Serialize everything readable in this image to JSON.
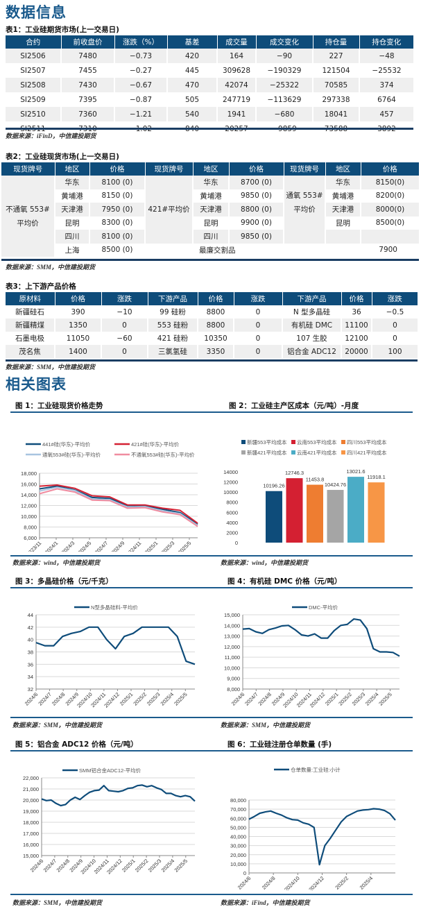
{
  "sections": {
    "data_info_title": "数据信息",
    "charts_title": "相关图表"
  },
  "table1": {
    "caption": "表1：工业硅期货市场(上一交易日)",
    "headers": [
      "合约",
      "前收盘价",
      "涨跌（%）",
      "基差",
      "成交量",
      "成交变化",
      "持仓量",
      "持仓变化"
    ],
    "rows": [
      [
        "SI2506",
        "7480",
        "−0.73",
        "420",
        "164",
        "−90",
        "227",
        "−48"
      ],
      [
        "SI2507",
        "7455",
        "−0.27",
        "445",
        "309628",
        "−190329",
        "121504",
        "−25532"
      ],
      [
        "SI2508",
        "7430",
        "−0.67",
        "470",
        "42074",
        "−25322",
        "70585",
        "374"
      ],
      [
        "SI2509",
        "7395",
        "−0.87",
        "505",
        "247719",
        "−113629",
        "297338",
        "6764"
      ],
      [
        "SI2510",
        "7360",
        "−1.21",
        "540",
        "1941",
        "−680",
        "18041",
        "457"
      ],
      [
        "SI2511",
        "7310",
        "−1.02",
        "840",
        "20257",
        "−9859",
        "73588",
        "3892"
      ]
    ],
    "source": "数据来源：iFinD，中信建投期货"
  },
  "table2": {
    "caption": "表2：工业硅现货市场(上一交易日)",
    "headers": [
      "现货牌号",
      "地区",
      "价格",
      "现货牌号",
      "地区",
      "价格",
      "现货牌号",
      "地区",
      "价格"
    ],
    "group1": {
      "label_line1": "不通氧 553#",
      "label_line2": "平均价",
      "rows": [
        [
          "华东",
          "8100 (0)"
        ],
        [
          "黄埔港",
          "8150 (0)"
        ],
        [
          "天津港",
          "7950 (0)"
        ],
        [
          "昆明",
          "8300 (0)"
        ],
        [
          "四川",
          "8100 (0)"
        ],
        [
          "上海",
          "8500 (0)"
        ]
      ]
    },
    "group2": {
      "label": "421#平均价",
      "rows": [
        [
          "华东",
          "8700 (0)"
        ],
        [
          "黄埔港",
          "9850 (0)"
        ],
        [
          "天津港",
          "8800 (0)"
        ],
        [
          "昆明",
          "9900 (0)"
        ],
        [
          "四川",
          "9850 (0)"
        ]
      ]
    },
    "group3": {
      "label_line1": "通氧 553#",
      "label_line2": "平均价",
      "rows": [
        [
          "华东",
          "8150(0)"
        ],
        [
          "黄埔港",
          "8200(0)"
        ],
        [
          "天津港",
          "8000(0)"
        ],
        [
          "昆明",
          "8500(0)"
        ]
      ]
    },
    "last_row": {
      "label": "最廉交割品",
      "value": "7900"
    },
    "source": "数据来源：SMM，中信建投期货"
  },
  "table3": {
    "caption": "表3：上下游产品价格",
    "headers": [
      "原材料",
      "价格",
      "涨跌",
      "下游产品",
      "价格",
      "涨跌",
      "下游产品",
      "价格",
      "涨跌"
    ],
    "rows": [
      [
        "新疆硅石",
        "390",
        "−10",
        "99 硅粉",
        "8800",
        "0",
        "N 型多晶硅",
        "36",
        "−0.5"
      ],
      [
        "新疆精煤",
        "1350",
        "0",
        "553 硅粉",
        "8800",
        "0",
        "有机硅 DMC",
        "11100",
        "0"
      ],
      [
        "石墨电极",
        "11050",
        "−60",
        "421 硅粉",
        "10350",
        "0",
        "107 生胶",
        "12100",
        "0"
      ],
      [
        "茂名焦",
        "1400",
        "0",
        "三氯氢硅",
        "3350",
        "0",
        "铝合金 ADC12",
        "20000",
        "100"
      ]
    ],
    "source": "数据来源：SMM，中信建投期货"
  },
  "chart_captions": {
    "c1": "图 1：工业硅现货价格走势",
    "c2": "图 2：工业硅主产区成本（元/吨）-月度",
    "c3": "图 3：多晶硅价格（元/千克）",
    "c4": "图 4：有机硅 DMC 价格（元/吨）",
    "c5": "图 5：铝合金 ADC12 价格（元/吨）",
    "c6": "图 6：工业硅注册仓单数量 (手)"
  },
  "chart_sources": {
    "c1": "数据来源：wind，中信建投期货",
    "c2": "数据来源：wind，中信建投期货",
    "c3": "数据来源：SMM，中信建投期货",
    "c4": "数据来源：SMM，中信建投期货",
    "c5": "数据来源：SMM，中信建投期货",
    "c6": "数据来源：iFind，中信建投期货"
  },
  "chart_data": [
    {
      "type": "line",
      "title": "工业硅现货价格走势",
      "x": [
        "2023/11",
        "2024/1",
        "2024/3",
        "2024/5",
        "2024/7",
        "2024/9",
        "2024/11",
        "2025/1",
        "2025/3",
        "2025/5"
      ],
      "ylim": [
        6000,
        18000
      ],
      "yticks": [
        "6,000",
        "8,000",
        "10,000",
        "12,000",
        "14,000",
        "16,000",
        "18,000"
      ],
      "series": [
        {
          "name": "441#硅(华东)-平均价",
          "color": "#0e4c7a",
          "values": [
            15100,
            15600,
            14900,
            13500,
            13300,
            12000,
            12000,
            11300,
            10700,
            8500
          ]
        },
        {
          "name": "421#硅(华东)-平均价",
          "color": "#d42032",
          "values": [
            15600,
            15800,
            15200,
            13800,
            13600,
            12100,
            12100,
            11500,
            11100,
            8700
          ]
        },
        {
          "name": "通氧553#硅(华东)-平均价",
          "color": "#a8c4e0",
          "values": [
            14700,
            15400,
            14800,
            13200,
            13100,
            11700,
            11800,
            11000,
            10500,
            8300
          ]
        },
        {
          "name": "不通氧553#硅(华东)-平均价",
          "color": "#f08ca0",
          "values": [
            14200,
            15100,
            14500,
            13000,
            12900,
            11500,
            11600,
            10800,
            10300,
            8100
          ]
        }
      ],
      "grid": true,
      "legend_position": "top"
    },
    {
      "type": "bar",
      "title": "工业硅主产区成本（元/吨）-月度",
      "categories": [
        "新疆553平均成本",
        "云南553平均成本",
        "四川553平均成本",
        "新疆421平均成本",
        "云南421平均成本",
        "四川421平均成本"
      ],
      "values": [
        10196.26,
        12746.3,
        11453.8,
        10424.76,
        13021.6,
        11918.1
      ],
      "labels": [
        "10196.26",
        "12746.3",
        "11453.8",
        "10424.76",
        "13021.6",
        "11918.1"
      ],
      "colors": [
        "#0e4c7a",
        "#d42032",
        "#ee7d31",
        "#a5a5a5",
        "#4bacc6",
        "#f79646"
      ],
      "ylim": [
        0,
        14000
      ],
      "yticks": [
        "0",
        "2000",
        "4000",
        "6000",
        "8000",
        "10000",
        "12000",
        "14000"
      ],
      "legend_position": "top"
    },
    {
      "type": "line",
      "title": "多晶硅价格（元/千克）",
      "x": [
        "2024/6",
        "2024/7",
        "2024/8",
        "2024/9",
        "2024/10",
        "2024/11",
        "2024/12",
        "2025/1",
        "2025/2",
        "2025/3",
        "2025/4",
        "2025/5"
      ],
      "ylim": [
        32,
        44
      ],
      "yticks": [
        "32",
        "34",
        "36",
        "38",
        "40",
        "42",
        "44"
      ],
      "series": [
        {
          "name": "N型多晶硅料-平均价",
          "color": "#0e4c7a",
          "values": [
            39.5,
            39,
            39,
            40.5,
            41,
            41.3,
            42,
            42,
            40,
            38.5,
            40.5,
            41,
            42,
            42,
            42,
            42,
            40.5,
            36.5,
            36
          ]
        }
      ],
      "grid": true
    },
    {
      "type": "line",
      "title": "有机硅 DMC 价格（元/吨）",
      "x": [
        "2024/6",
        "2024/7",
        "2024/8",
        "2024/9",
        "2024/10",
        "2024/11",
        "2024/12",
        "2025/1",
        "2025/2",
        "2025/3",
        "2025/4",
        "2025/5"
      ],
      "ylim": [
        8000,
        15000
      ],
      "yticks": [
        "8,000",
        "9,000",
        "10,000",
        "11,000",
        "12,000",
        "13,000",
        "14,000",
        "15,000"
      ],
      "series": [
        {
          "name": "DMC-平均价",
          "color": "#0e4c7a",
          "values": [
            13650,
            13700,
            13400,
            13250,
            13600,
            13750,
            13950,
            14000,
            13600,
            13100,
            13000,
            13200,
            12800,
            12800,
            13500,
            14000,
            14100,
            14600,
            14500,
            13700,
            11800,
            11500,
            11500,
            11450,
            11100
          ]
        }
      ],
      "grid": true
    },
    {
      "type": "line",
      "title": "铝合金 ADC12 价格（元/吨）",
      "x": [
        "2024/6",
        "2024/7",
        "2024/8",
        "2024/9",
        "2024/10",
        "2024/11",
        "2024/12",
        "2025/1",
        "2025/2",
        "2025/3",
        "2025/4",
        "2025/5"
      ],
      "ylim": [
        15000,
        22000
      ],
      "yticks": [
        "15,000",
        "16,000",
        "17,000",
        "18,000",
        "19,000",
        "20,000",
        "21,000",
        "22,000"
      ],
      "series": [
        {
          "name": "SMM铝合金ADC12-平均价",
          "color": "#0e4c7a",
          "values": [
            20100,
            19950,
            20000,
            19700,
            19500,
            19600,
            20000,
            20250,
            20050,
            20400,
            20700,
            20850,
            20900,
            21300,
            20850,
            20800,
            20750,
            20850,
            21050,
            21100,
            21300,
            21350,
            21200,
            21300,
            21100,
            20950,
            20600,
            20600,
            20400,
            20300,
            20400,
            20300,
            19900
          ]
        }
      ],
      "grid": true
    },
    {
      "type": "line",
      "title": "工业硅注册仓单数量 (手)",
      "x": [
        "2024/6",
        "2024/8",
        "2024/10",
        "2024/12",
        "2025/2",
        "2025/4"
      ],
      "ylim": [
        0,
        80000
      ],
      "yticks": [
        "0",
        "10,000",
        "20,000",
        "30,000",
        "40,000",
        "50,000",
        "60,000",
        "70,000",
        "80,000"
      ],
      "series": [
        {
          "name": "仓单数量:工业硅:小计",
          "color": "#0e4c7a",
          "values": [
            59000,
            62000,
            65500,
            67000,
            68000,
            65500,
            63500,
            60500,
            58500,
            58000,
            55000,
            53500,
            50000,
            9000,
            30000,
            38000,
            47000,
            56000,
            62000,
            65000,
            68000,
            69000,
            69500,
            70500,
            70000,
            68500,
            65000,
            58000
          ]
        }
      ],
      "grid": true
    }
  ]
}
